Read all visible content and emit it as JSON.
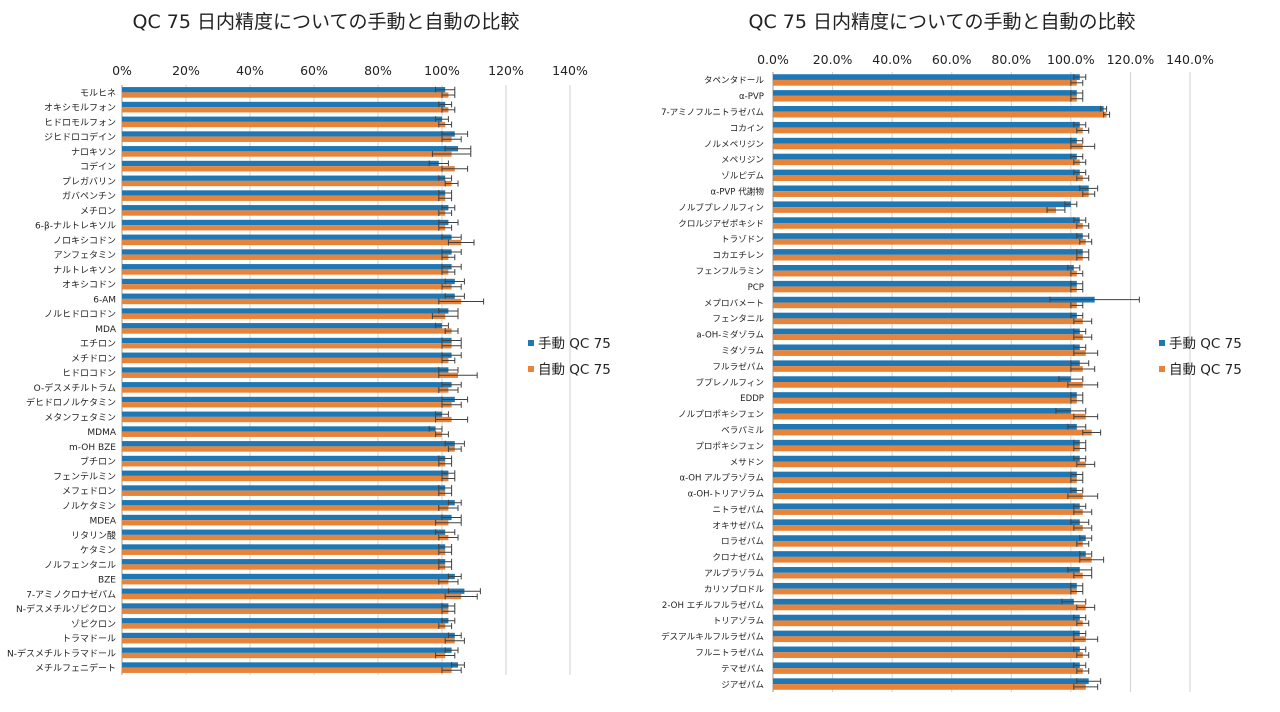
{
  "colors": {
    "manual": "#1f77b4",
    "auto": "#e8833a",
    "error": "#404040",
    "grid": "#d0d0d0",
    "text": "#222222"
  },
  "chart_data": [
    {
      "type": "bar",
      "orientation": "horizontal",
      "title": "QC 75 日内精度についての手動と自動の比較",
      "xlim": [
        0,
        140
      ],
      "xticks": [
        "0%",
        "20%",
        "40%",
        "60%",
        "80%",
        "100%",
        "120%",
        "140%"
      ],
      "grid": true,
      "legend_position": "right",
      "categories": [
        "モルヒネ",
        "オキシモルフォン",
        "ヒドロモルフォン",
        "ジヒドロコデイン",
        "ナロキソン",
        "コデイン",
        "プレガバリン",
        "ガバペンチン",
        "メチロン",
        "6-β-ナルトレキソル",
        "ノロキシコドン",
        "アンフェタミン",
        "ナルトレキソン",
        "オキシコドン",
        "6-AM",
        "ノルヒドロコドン",
        "MDA",
        "エチロン",
        "メチドロン",
        "ヒドロコドン",
        "O-デスメチルトラム",
        "デヒドロノルケタミン",
        "メタンフェタミン",
        "MDMA",
        "m-OH BZE",
        "ブチロン",
        "フェンテルミン",
        "メフェドロン",
        "ノルケタミン",
        "MDEA",
        "リタリン酸",
        "ケタミン",
        "ノルフェンタニル",
        "BZE",
        "7-アミノクロナゼパム",
        "N-デスメチルゾピクロン",
        "ゾピクロン",
        "トラマドール",
        "N-デスメチルトラマドール",
        "メチルフェニデート"
      ],
      "series": [
        {
          "name": "手動 QC 75",
          "values": [
            101,
            101,
            100,
            104,
            105,
            99,
            101,
            101,
            102,
            102,
            103,
            103,
            103,
            104,
            104,
            102,
            100,
            103,
            103,
            102,
            103,
            104,
            100,
            98,
            104,
            101,
            102,
            101,
            104,
            103,
            101,
            101,
            101,
            104,
            107,
            102,
            102,
            104,
            103,
            105
          ],
          "errors": [
            3,
            2,
            2,
            4,
            4,
            3,
            2,
            2,
            2,
            3,
            3,
            3,
            3,
            3,
            3,
            3,
            2,
            3,
            3,
            3,
            3,
            4,
            2,
            2,
            3,
            2,
            2,
            2,
            2,
            3,
            3,
            2,
            2,
            2,
            5,
            2,
            2,
            2,
            2,
            2
          ]
        },
        {
          "name": "自動 QC 75",
          "values": [
            102,
            102,
            101,
            103,
            103,
            104,
            103,
            101,
            101,
            101,
            106,
            102,
            102,
            103,
            106,
            101,
            103,
            103,
            102,
            105,
            102,
            103,
            103,
            100,
            104,
            101,
            102,
            101,
            102,
            102,
            102,
            101,
            101,
            102,
            106,
            102,
            101,
            104,
            101,
            103
          ],
          "errors": [
            2,
            2,
            2,
            3,
            6,
            4,
            2,
            2,
            2,
            2,
            4,
            2,
            2,
            3,
            7,
            4,
            2,
            3,
            2,
            6,
            3,
            3,
            5,
            2,
            2,
            2,
            2,
            2,
            3,
            4,
            3,
            2,
            2,
            3,
            5,
            2,
            2,
            3,
            3,
            3
          ]
        }
      ]
    },
    {
      "type": "bar",
      "orientation": "horizontal",
      "title": "QC 75 日内精度についての手動と自動の比較",
      "xlim": [
        0,
        140
      ],
      "xticks": [
        "0.0%",
        "20.0%",
        "40.0%",
        "60.0%",
        "80.0%",
        "100.0%",
        "120.0%",
        "140.0%"
      ],
      "grid": true,
      "legend_position": "right",
      "categories": [
        "タペンタドール",
        "α-PVP",
        "7-アミノフルニトラゼパム",
        "コカイン",
        "ノルメペリジン",
        "メペリジン",
        "ゾルピデム",
        "α-PVP 代謝物",
        "ノルブプレノルフィン",
        "クロルジアゼポキシド",
        "トラゾドン",
        "コカエチレン",
        "フェンフルラミン",
        "PCP",
        "メプロバメート",
        "フェンタニル",
        "a-OH-ミダゾラム",
        "ミダゾラム",
        "フルラゼパム",
        "ブプレノルフィン",
        "EDDP",
        "ノルプロポキシフェン",
        "ベラパミル",
        "プロポキシフェン",
        "メサドン",
        "α-OH アルプラゾラム",
        "α-OH-トリアゾラム",
        "ニトラゼパム",
        "オキサゼパム",
        "ロラゼパム",
        "クロナゼパム",
        "アルプラゾラム",
        "カリソプロドル",
        "2-OH エチルフルラゼパム",
        "トリアゾラム",
        "デスアルキルフルラゼパム",
        "フルニトラゼパム",
        "テマゼパム",
        "ジアゼパム"
      ],
      "series": [
        {
          "name": "手動 QC 75",
          "values": [
            103,
            102,
            111,
            103,
            102,
            102,
            103,
            106,
            100,
            103,
            104,
            104,
            101,
            102,
            108,
            102,
            103,
            103,
            103,
            100,
            102,
            100,
            102,
            103,
            103,
            102,
            102,
            103,
            103,
            105,
            105,
            103,
            102,
            101,
            103,
            103,
            103,
            103,
            106
          ],
          "errors": [
            2,
            2,
            1,
            2,
            2,
            2,
            2,
            3,
            2,
            2,
            2,
            2,
            2,
            2,
            15,
            2,
            2,
            2,
            3,
            4,
            2,
            5,
            3,
            2,
            2,
            2,
            2,
            2,
            3,
            2,
            2,
            4,
            2,
            4,
            2,
            2,
            2,
            2,
            4
          ]
        },
        {
          "name": "自動 QC 75",
          "values": [
            102,
            102,
            112,
            104,
            104,
            103,
            104,
            106,
            95,
            104,
            105,
            104,
            102,
            102,
            102,
            104,
            104,
            105,
            104,
            104,
            102,
            105,
            107,
            103,
            105,
            102,
            104,
            104,
            104,
            104,
            107,
            104,
            102,
            105,
            104,
            105,
            104,
            104,
            105
          ],
          "errors": [
            2,
            2,
            1,
            2,
            4,
            2,
            2,
            2,
            3,
            2,
            2,
            2,
            2,
            2,
            2,
            3,
            3,
            4,
            4,
            5,
            2,
            4,
            3,
            2,
            3,
            2,
            5,
            3,
            3,
            2,
            4,
            3,
            2,
            3,
            2,
            4,
            2,
            2,
            4
          ]
        }
      ]
    }
  ]
}
